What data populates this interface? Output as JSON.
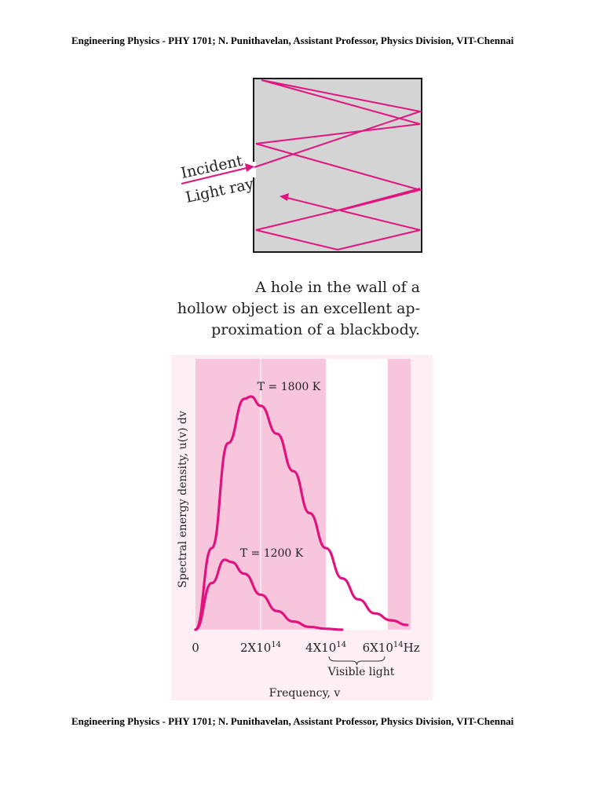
{
  "header": {
    "text": "Engineering Physics - PHY 1701; N. Punithavelan, Assistant Professor, Physics Division, VIT-Chennai"
  },
  "footer": {
    "text": "Engineering Physics - PHY 1701; N. Punithavelan, Assistant Professor, Physics Division, VIT-Chennai"
  },
  "cavity_figure": {
    "label_line1": "Incident",
    "label_line2": "Light ray",
    "caption_lines": [
      "A hole in the wall of a",
      "hollow object is an excellent ap-",
      "proximation of a blackbody."
    ],
    "colors": {
      "ray": "#e0147f",
      "cavity": "#d4d4d4",
      "wall": "#1a1a1a"
    }
  },
  "chart_data": {
    "type": "line",
    "ylabel": "Spectral energy density, u(v) dv",
    "xlabel": "Frequency, v",
    "x_unit": "Hz",
    "x_tick_labels": [
      "0",
      "2X10",
      "4X10",
      "6X10"
    ],
    "x_tick_exponent": "14",
    "x_ticks": [
      0,
      200000000000000.0,
      400000000000000.0,
      600000000000000.0
    ],
    "xlim": [
      0,
      660000000000000.0
    ],
    "ylim": [
      0,
      1
    ],
    "band_label": "Visible light",
    "visible_band": [
      400000000000000.0,
      590000000000000.0
    ],
    "series": [
      {
        "name": "T = 1800 K",
        "x": [
          0,
          50000000000000.0,
          100000000000000.0,
          150000000000000.0,
          170000000000000.0,
          200000000000000.0,
          250000000000000.0,
          300000000000000.0,
          350000000000000.0,
          400000000000000.0,
          450000000000000.0,
          500000000000000.0,
          550000000000000.0,
          600000000000000.0,
          650000000000000.0
        ],
        "y": [
          0,
          0.35,
          0.8,
          0.99,
          1.0,
          0.96,
          0.84,
          0.68,
          0.5,
          0.35,
          0.22,
          0.13,
          0.07,
          0.04,
          0.02
        ]
      },
      {
        "name": "T = 1200 K",
        "x": [
          0,
          50000000000000.0,
          90000000000000.0,
          110000000000000.0,
          150000000000000.0,
          200000000000000.0,
          250000000000000.0,
          300000000000000.0,
          350000000000000.0,
          400000000000000.0,
          450000000000000.0
        ],
        "y": [
          0,
          0.2,
          0.3,
          0.29,
          0.24,
          0.15,
          0.08,
          0.035,
          0.012,
          0.004,
          0.0
        ]
      }
    ],
    "colors": {
      "curve": "#e0147f",
      "band": "#f7c6dc",
      "panel": "#fdeff4"
    }
  }
}
